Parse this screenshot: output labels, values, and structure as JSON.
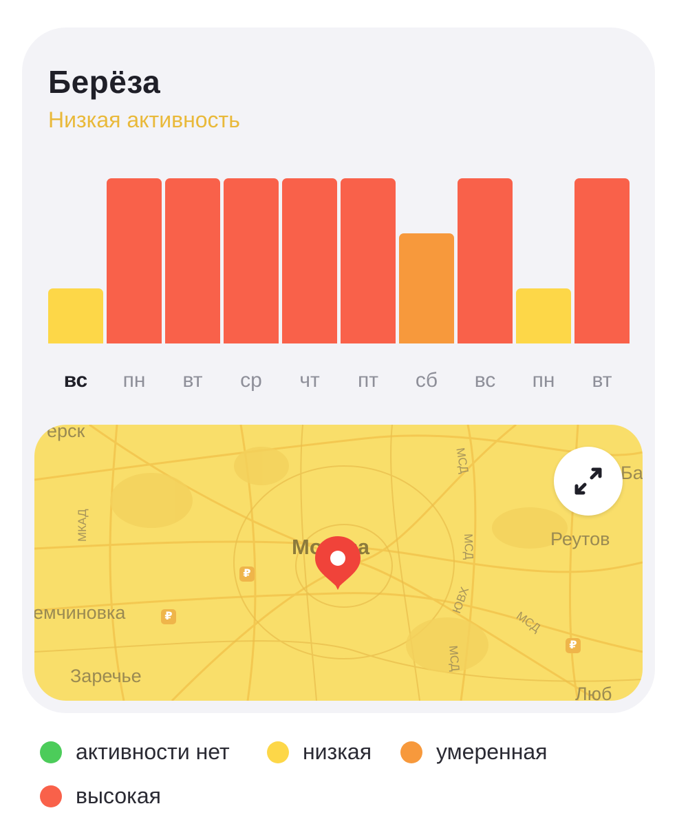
{
  "header": {
    "title": "Берёза",
    "subtitle": "Низкая активность"
  },
  "colors": {
    "none": "#4ccc5a",
    "low": "#fdd748",
    "moderate": "#f7993c",
    "high": "#f9614a",
    "subtitle": "#e9b93a"
  },
  "chart_data": {
    "type": "bar",
    "categories": [
      "вс",
      "пн",
      "вт",
      "ср",
      "чт",
      "пт",
      "сб",
      "вс",
      "пн",
      "вт"
    ],
    "values": [
      1,
      3,
      3,
      3,
      3,
      3,
      2,
      3,
      1,
      3
    ],
    "levels": [
      "низкая",
      "высокая",
      "высокая",
      "высокая",
      "высокая",
      "высокая",
      "умеренная",
      "высокая",
      "низкая",
      "высокая"
    ],
    "ylim": [
      0,
      3
    ],
    "highlighted_category_index": 0,
    "grid": false
  },
  "days": [
    "вс",
    "пн",
    "вт",
    "ср",
    "чт",
    "пт",
    "сб",
    "вс",
    "пн",
    "вт"
  ],
  "map": {
    "center_label": "Москва",
    "labels": {
      "top_left": "ёрск",
      "right_edge": "Ба",
      "reutov": "Реутов",
      "nemchinovka": "емчиновка",
      "zarechye": "Заречье",
      "bottom_right": "Люб"
    },
    "roads": {
      "mkad": "МКАД",
      "msd1": "МСД",
      "msd2": "МСД",
      "msd3": "МСД",
      "msd4": "МСД",
      "yuvkh": "ЮВХ"
    },
    "metro_symbol": "₽",
    "expand_icon": "expand-arrows-icon",
    "pin_icon": "location-pin-icon"
  },
  "legend": [
    {
      "label": "активности нет",
      "color": "#4ccc5a"
    },
    {
      "label": "низкая",
      "color": "#fdd748"
    },
    {
      "label": "умеренная",
      "color": "#f7993c"
    },
    {
      "label": "высокая",
      "color": "#f9614a"
    }
  ]
}
